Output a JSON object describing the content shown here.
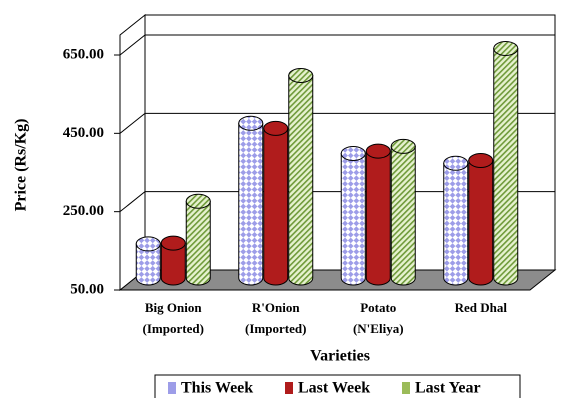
{
  "chart_data": {
    "type": "bar",
    "y_label": "Price (Rs/Kg)",
    "x_label": "Varieties",
    "categories": [
      [
        "Big Onion",
        "(Imported)"
      ],
      [
        "R'Onion",
        "(Imported)"
      ],
      [
        "Potato",
        "(N'Eliya)"
      ],
      [
        "Red Dhal"
      ]
    ],
    "series": [
      {
        "name": "This Week",
        "color": "#9d9de8",
        "values": [
          137,
          445,
          368,
          343
        ]
      },
      {
        "name": "Last Week",
        "color": "#b01c1c",
        "values": [
          139,
          432,
          374,
          350
        ]
      },
      {
        "name": "Last Year",
        "color": "#9bbb59",
        "values": [
          246,
          567,
          386,
          636
        ]
      }
    ],
    "ylim": [
      50,
      650
    ],
    "yticks": [
      {
        "value": 50,
        "label": "50.00"
      },
      {
        "value": 250,
        "label": "250.00"
      },
      {
        "value": 450,
        "label": "450.00"
      },
      {
        "value": 650,
        "label": "650.00"
      }
    ],
    "grid": true
  }
}
